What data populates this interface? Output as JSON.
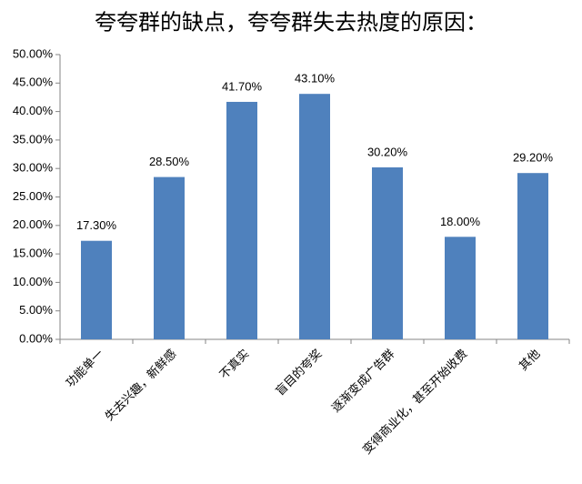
{
  "chart_data": {
    "type": "bar",
    "title": "夸夸群的缺点，夸夸群失去热度的原因：",
    "categories": [
      "功能单一",
      "失去兴趣，新鲜感",
      "不真实",
      "盲目的夸奖",
      "逐渐变成广告群",
      "变得商业化，甚至开始收费",
      "其他"
    ],
    "values": [
      17.3,
      28.5,
      41.7,
      43.1,
      30.2,
      18.0,
      29.2
    ],
    "value_labels": [
      "17.30%",
      "28.50%",
      "41.70%",
      "43.10%",
      "30.20%",
      "18.00%",
      "29.20%"
    ],
    "color": "#4f81bd",
    "ylim": [
      0,
      50
    ],
    "yticks": [
      {
        "value": 0,
        "label": "0.00%"
      },
      {
        "value": 5,
        "label": "5.00%"
      },
      {
        "value": 10,
        "label": "10.00%"
      },
      {
        "value": 15,
        "label": "15.00%"
      },
      {
        "value": 20,
        "label": "20.00%"
      },
      {
        "value": 25,
        "label": "25.00%"
      },
      {
        "value": 30,
        "label": "30.00%"
      },
      {
        "value": 35,
        "label": "35.00%"
      },
      {
        "value": 40,
        "label": "40.00%"
      },
      {
        "value": 45,
        "label": "45.00%"
      },
      {
        "value": 50,
        "label": "50.00%"
      }
    ],
    "grid": false
  }
}
